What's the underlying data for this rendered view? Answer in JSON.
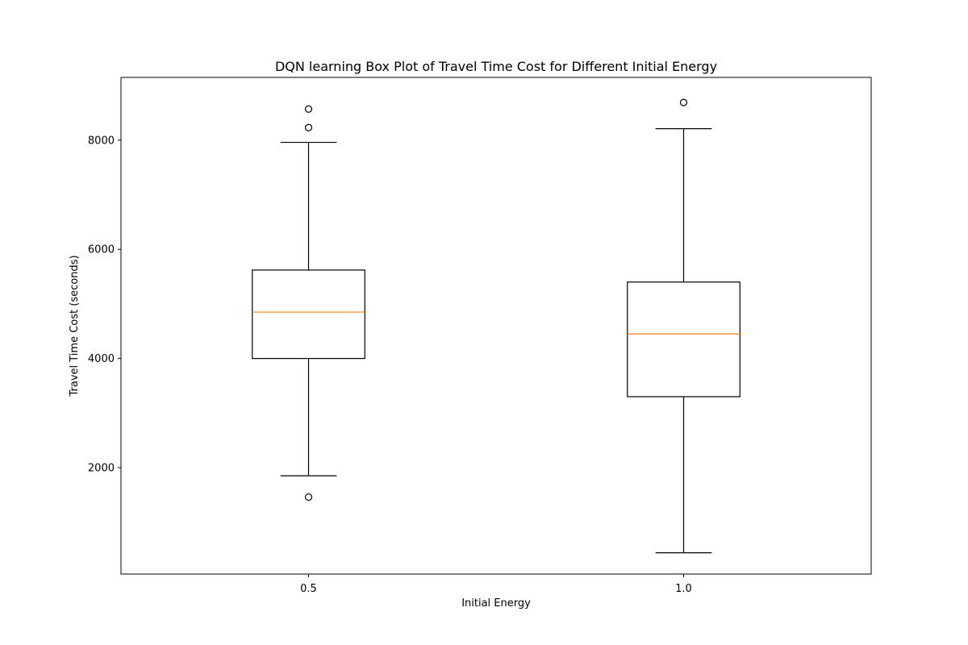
{
  "chart_data": {
    "type": "box",
    "title": "DQN learning Box Plot of Travel Time Cost for Different Initial Energy",
    "xlabel": "Initial Energy",
    "ylabel": "Travel Time Cost (seconds)",
    "categories": [
      "0.5",
      "1.0"
    ],
    "ylim": [
      50,
      9150
    ],
    "yticks": [
      2000,
      4000,
      6000,
      8000
    ],
    "grid": false,
    "boxes": [
      {
        "category": "0.5",
        "whisker_low": 1850,
        "q1": 4000,
        "median": 4850,
        "q3": 5620,
        "whisker_high": 7960,
        "outliers": [
          1460,
          8230,
          8570
        ]
      },
      {
        "category": "1.0",
        "whisker_low": 440,
        "q1": 3300,
        "median": 4450,
        "q3": 5400,
        "whisker_high": 8210,
        "outliers": [
          8690
        ]
      }
    ],
    "colors": {
      "box": "#000000",
      "median": "#ff7f0e",
      "outlier": "#000000"
    }
  }
}
